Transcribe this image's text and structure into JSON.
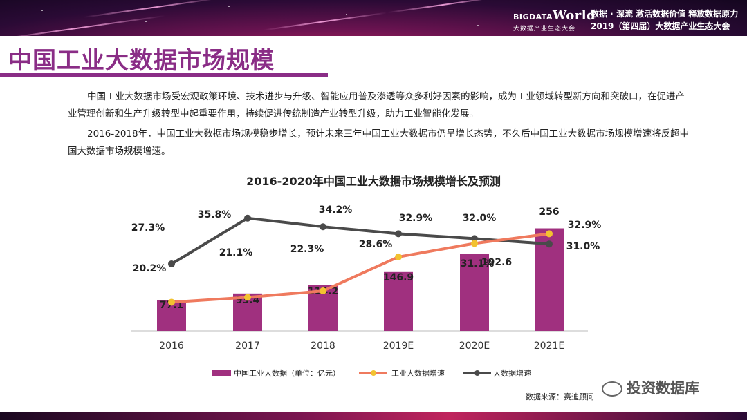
{
  "header": {
    "logo_prefix": "BIGDATA",
    "logo_main": "World",
    "logo_sub": "大数据产业生态大会",
    "tagline1": "数据 · 深流  激活数据价值  释放数据原力",
    "tagline2": "2019（第四届）大数据产业生态大会"
  },
  "page_title": "中国工业大数据市场规模",
  "paragraphs": [
    "中国工业大数据市场受宏观政策环境、技术进步与升级、智能应用普及渗透等众多利好因素的影响，成为工业领域转型新方向和突破口，在促进产业管理创新和生产升级转型中起重要作用，持续促进传统制造产业转型升级，助力工业智能化发展。",
    "2016-2018年，中国工业大数据市场规模稳步增长，预计未来三年中国工业大数据市仍呈增长态势，不久后中国工业大数据市场规模增速将反超中国大数据市场规模增速。"
  ],
  "source": "数据来源：赛迪顾问",
  "watermark": "投资数据库",
  "colors": {
    "bar": "#a0307f",
    "industrial_growth": "#ef7a5e",
    "bigdata_growth": "#4a4a4a",
    "marker": "#f2c230",
    "accent": "#8a2d86"
  },
  "chart_data": {
    "type": "bar",
    "title": "2016-2020年中国工业大数据市场规模增长及预测",
    "categories": [
      "2016",
      "2017",
      "2018",
      "2019E",
      "2020E",
      "2021E"
    ],
    "series": [
      {
        "name": "中国工业大数据（单位：亿元）",
        "type": "bar",
        "values": [
          77.1,
          93.4,
          114.2,
          146.9,
          192.6,
          256
        ],
        "labels": [
          "77.1",
          "93.4",
          "114.2",
          "146.9",
          "192.6",
          "256"
        ]
      },
      {
        "name": "工业大数据增速",
        "type": "line",
        "values": [
          20.2,
          21.1,
          22.3,
          28.6,
          31.1,
          32.9
        ],
        "labels": [
          "20.2%",
          "21.1%",
          "22.3%",
          "28.6%",
          "31.1%",
          "32.9%"
        ]
      },
      {
        "name": "大数据增速",
        "type": "line",
        "values": [
          27.3,
          35.8,
          34.2,
          32.9,
          32.0,
          31.0
        ],
        "labels": [
          "27.3%",
          "35.8%",
          "34.2%",
          "32.9%",
          "32.0%",
          "31.0%"
        ]
      }
    ],
    "legend": "bottom"
  }
}
